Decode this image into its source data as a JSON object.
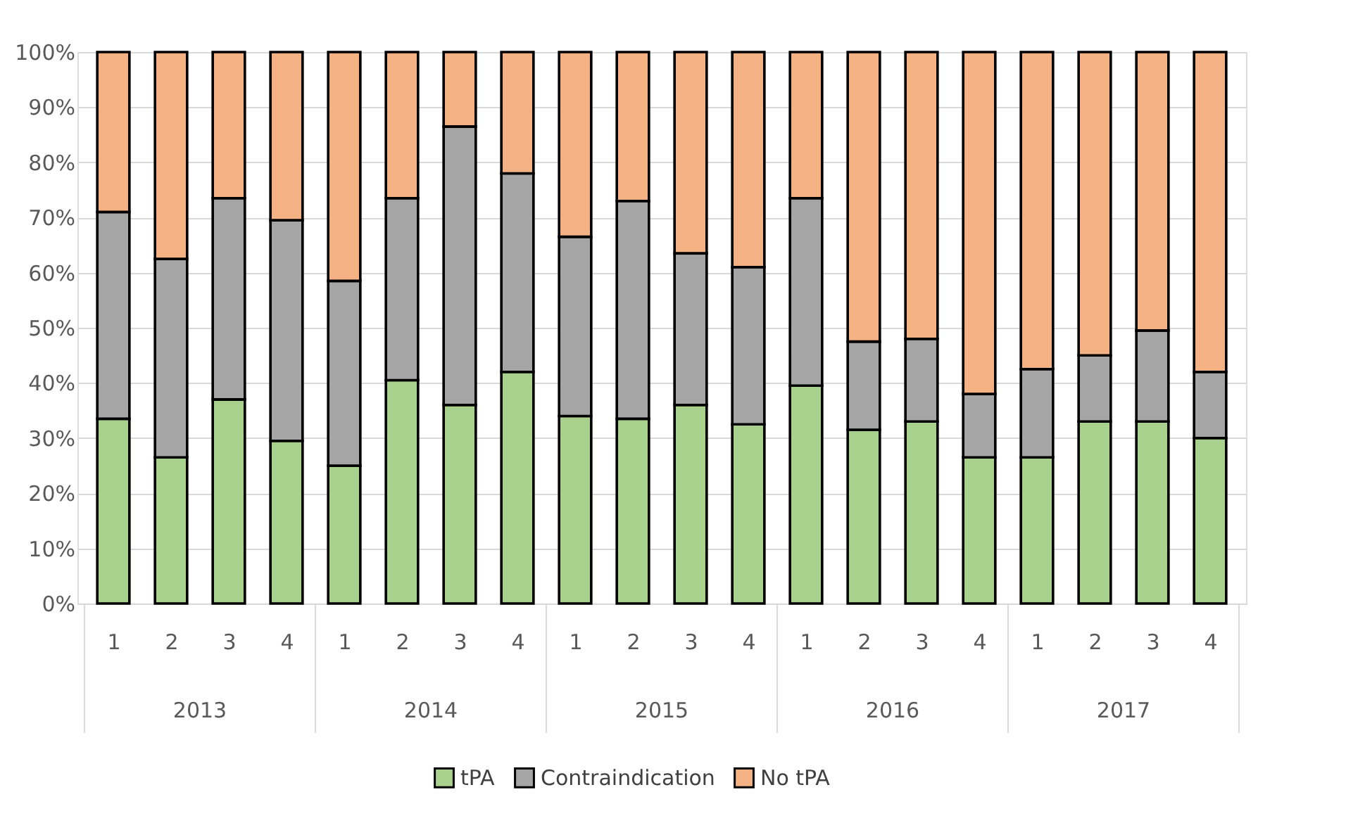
{
  "chart_data": {
    "type": "bar",
    "stacked": true,
    "categories": [
      "1",
      "2",
      "3",
      "4",
      "1",
      "2",
      "3",
      "4",
      "1",
      "2",
      "3",
      "4",
      "1",
      "2",
      "3",
      "4",
      "1",
      "2",
      "3",
      "4"
    ],
    "series": [
      {
        "name": "tPA",
        "color": "#a9d18e",
        "values": [
          33.5,
          26.5,
          37,
          29.5,
          25,
          40.5,
          36,
          42,
          34,
          33.5,
          36,
          32.5,
          39.5,
          31.5,
          33,
          26.5,
          26.5,
          33,
          33,
          30
        ]
      },
      {
        "name": "Contraindication",
        "color": "#a5a5a5",
        "values": [
          37.5,
          36,
          36.5,
          40,
          33.5,
          33,
          50.5,
          36,
          32.5,
          39.5,
          27.5,
          28.5,
          34,
          16,
          15,
          11.5,
          16,
          12,
          16.5,
          12
        ]
      },
      {
        "name": "No tPA",
        "color": "#f4b183",
        "values": [
          29,
          37.5,
          26.5,
          30.5,
          41.5,
          26.5,
          13.5,
          22,
          33.5,
          27,
          36.5,
          39,
          26.5,
          52.5,
          52,
          62,
          57.5,
          55,
          50.5,
          58
        ]
      }
    ],
    "annotations": [
      "2013",
      "2014",
      "2015",
      "2016",
      "2017"
    ],
    "ylim": [
      0,
      100
    ],
    "yticks": [
      {
        "value": 0,
        "label": "0%"
      },
      {
        "value": 10,
        "label": "10%"
      },
      {
        "value": 20,
        "label": "20%"
      },
      {
        "value": 30,
        "label": "30%"
      },
      {
        "value": 40,
        "label": "40%"
      },
      {
        "value": 50,
        "label": "50%"
      },
      {
        "value": 60,
        "label": "60%"
      },
      {
        "value": 70,
        "label": "70%"
      },
      {
        "value": 80,
        "label": "80%"
      },
      {
        "value": 90,
        "label": "90%"
      },
      {
        "value": 100,
        "label": "100%"
      }
    ],
    "grid": "y",
    "legend": "bottom"
  }
}
